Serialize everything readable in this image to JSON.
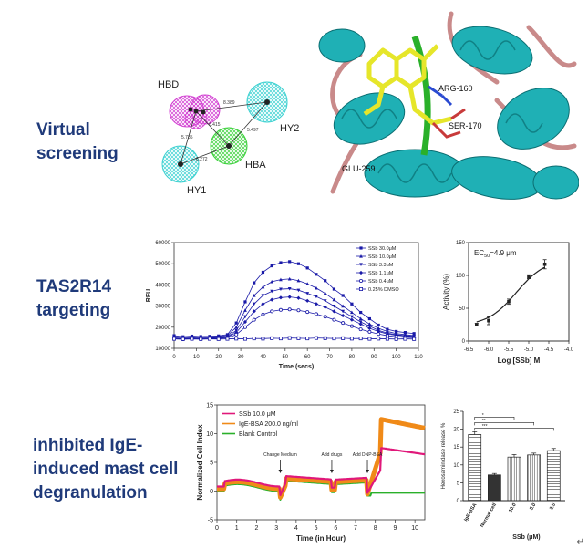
{
  "sections": [
    {
      "id": "vs",
      "label": "Virtual\nscreening"
    },
    {
      "id": "tas",
      "label": "TAS2R14\ntargeting"
    },
    {
      "id": "mast",
      "label": "inhibited IgE-\ninduced mast cell\ndegranulation"
    }
  ],
  "pharmacophore": {
    "labels": {
      "hbd": "HBD",
      "hy2": "HY2",
      "hba": "HBA",
      "hy1": "HY1"
    },
    "distances": [
      "8.389",
      "6.415",
      "5.497",
      "5.785",
      "8.272"
    ],
    "colors": {
      "hbd": "#d13bd1",
      "hy": "#3bd1d1",
      "hba": "#3bd13b"
    }
  },
  "docking": {
    "residues": [
      "ARG-160",
      "SER-170",
      "GLU-259"
    ],
    "colors": {
      "helix": "#1fb0b5",
      "loop": "#c98a8a",
      "ligand": "#e6e62a"
    }
  },
  "chart_data": [
    {
      "id": "rfu",
      "type": "line",
      "xlabel": "Time (secs)",
      "ylabel": "RFU",
      "xlim": [
        0,
        110
      ],
      "ylim": [
        10000,
        60000
      ],
      "xticks": [
        0,
        10,
        20,
        30,
        40,
        50,
        60,
        70,
        80,
        90,
        100,
        110
      ],
      "yticks": [
        10000,
        20000,
        30000,
        40000,
        50000,
        60000
      ],
      "x": [
        0,
        4,
        8,
        12,
        16,
        20,
        24,
        28,
        32,
        36,
        40,
        44,
        48,
        52,
        56,
        60,
        64,
        68,
        72,
        76,
        80,
        84,
        88,
        92,
        96,
        100,
        104,
        108
      ],
      "series": [
        {
          "name": "SSb 30.0μM",
          "marker": "square-filled",
          "values": [
            16000,
            15500,
            15800,
            15600,
            15700,
            15900,
            16500,
            22000,
            32000,
            41000,
            46000,
            49000,
            50500,
            51000,
            50000,
            48000,
            45000,
            42000,
            38000,
            35000,
            31000,
            27000,
            24000,
            21000,
            19000,
            18000,
            17500,
            17000
          ]
        },
        {
          "name": "SSb 10.0μM",
          "marker": "triangle-up-filled",
          "values": [
            15500,
            15200,
            15400,
            15300,
            15400,
            15600,
            16000,
            20000,
            28000,
            35000,
            39000,
            41500,
            42500,
            42800,
            42000,
            40500,
            38500,
            36000,
            33000,
            30000,
            27000,
            24000,
            21500,
            19500,
            18000,
            17000,
            16500,
            16000
          ]
        },
        {
          "name": "SSb 3.3μM",
          "marker": "triangle-down-filled",
          "values": [
            15000,
            14800,
            15000,
            14900,
            15000,
            15200,
            15500,
            18500,
            25000,
            31000,
            35000,
            37000,
            38000,
            38200,
            37500,
            36000,
            34500,
            32500,
            30000,
            27500,
            25000,
            22500,
            20500,
            18500,
            17200,
            16500,
            16000,
            15700
          ]
        },
        {
          "name": "SSb 1.1μM",
          "marker": "diamond-filled",
          "values": [
            14800,
            14600,
            14800,
            14700,
            14800,
            15000,
            15300,
            17500,
            22500,
            27500,
            31000,
            33000,
            34000,
            34300,
            33800,
            32500,
            31000,
            29500,
            27500,
            25500,
            23500,
            21500,
            19500,
            18000,
            16800,
            16200,
            15800,
            15500
          ]
        },
        {
          "name": "SSb 0.4μM",
          "marker": "circle-open",
          "values": [
            14500,
            14300,
            14500,
            14400,
            14500,
            14700,
            15000,
            16500,
            20000,
            23500,
            26000,
            27500,
            28200,
            28400,
            28000,
            27200,
            26200,
            25000,
            23500,
            22000,
            20500,
            19000,
            17800,
            16800,
            16000,
            15500,
            15200,
            15000
          ]
        },
        {
          "name": "0.25% DMSO",
          "marker": "square-open",
          "values": [
            14500,
            14400,
            14500,
            14400,
            14500,
            14400,
            14500,
            14600,
            14500,
            14700,
            14600,
            14800,
            14700,
            14900,
            14800,
            14700,
            14900,
            14800,
            14700,
            14800,
            14600,
            14700,
            14500,
            14600,
            14500,
            14400,
            14500,
            14400
          ]
        }
      ],
      "color": "#1a1aa8"
    },
    {
      "id": "dose",
      "type": "scatter",
      "annotation_prefix": "EC",
      "annotation_sub": "50",
      "annotation_value": "=4.9 μm",
      "xlabel": "Log [SSb] M",
      "ylabel": "Activity (%)",
      "xlim": [
        -6.5,
        -4.0
      ],
      "ylim": [
        0,
        150
      ],
      "xticks": [
        "-6.5",
        "-6.0",
        "-5.5",
        "-5.0",
        "-4.5",
        "-4.0"
      ],
      "yticks": [
        "0",
        "50",
        "100",
        "150"
      ],
      "x": [
        -6.3,
        -6.0,
        -5.5,
        -5.0,
        -4.6
      ],
      "values": [
        25,
        31,
        60,
        98,
        117
      ],
      "errors": [
        2,
        6,
        4,
        3,
        7
      ]
    },
    {
      "id": "cell",
      "type": "line",
      "xlabel": "Time (in Hour)",
      "ylabel": "Normalized Cell Index",
      "xlim": [
        0,
        10.5
      ],
      "ylim": [
        -5,
        15
      ],
      "xticks": [
        "0",
        "1",
        "2",
        "3",
        "4",
        "5",
        "6",
        "7",
        "8",
        "9",
        "10"
      ],
      "yticks": [
        "-5",
        "0",
        "5",
        "10",
        "15"
      ],
      "annotations": [
        {
          "text": "Change Medium",
          "x": 3.2
        },
        {
          "text": "Add drugs",
          "x": 5.8
        },
        {
          "text": "Add DNP-BSA",
          "x": 7.6
        }
      ],
      "series": [
        {
          "name": "SSb 10.0 μM",
          "color": "#e0187a"
        },
        {
          "name": "IgE-BSA 200.0 ng/ml",
          "color": "#f08a18"
        },
        {
          "name": "Blank Control",
          "color": "#2ab02a"
        }
      ]
    },
    {
      "id": "hexo",
      "type": "bar",
      "ylabel": "Hexosaminidase release %",
      "xlabel": "SSb (μM)",
      "ylim": [
        0,
        25
      ],
      "yticks": [
        "0",
        "5",
        "10",
        "15",
        "20",
        "25"
      ],
      "categories": [
        "IgE-BSA",
        "Normal cell",
        "10.0",
        "5.0",
        "2.5"
      ],
      "values": [
        18.5,
        7.2,
        12.2,
        12.8,
        14.0
      ],
      "errors": [
        0.8,
        0.4,
        0.7,
        0.5,
        0.6
      ],
      "significance": [
        "*",
        "**",
        "***"
      ]
    }
  ],
  "footer_mark": "↵"
}
